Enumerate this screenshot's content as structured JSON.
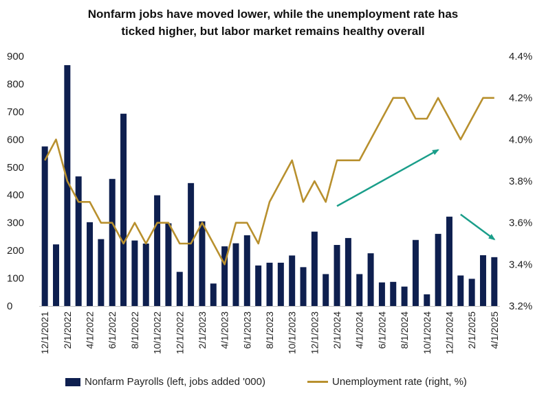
{
  "chart_data": {
    "type": "bar+line",
    "title_line1": "Nonfarm jobs have moved lower, while the unemployment rate has",
    "title_line2": "ticked higher, but labor market remains healthy overall",
    "x": [
      "12/1/2021",
      "1/1/2022",
      "2/1/2022",
      "3/1/2022",
      "4/1/2022",
      "5/1/2022",
      "6/1/2022",
      "7/1/2022",
      "8/1/2022",
      "9/1/2022",
      "10/1/2022",
      "11/1/2022",
      "12/1/2022",
      "1/1/2023",
      "2/1/2023",
      "3/1/2023",
      "4/1/2023",
      "5/1/2023",
      "6/1/2023",
      "7/1/2023",
      "8/1/2023",
      "9/1/2023",
      "10/1/2023",
      "11/1/2023",
      "12/1/2023",
      "1/1/2024",
      "2/1/2024",
      "3/1/2024",
      "4/1/2024",
      "5/1/2024",
      "6/1/2024",
      "7/1/2024",
      "8/1/2024",
      "9/1/2024",
      "10/1/2024",
      "11/1/2024",
      "12/1/2024",
      "1/1/2025",
      "2/1/2025",
      "3/1/2025",
      "4/1/2025"
    ],
    "x_tick_labels": [
      "12/1/2021",
      "2/1/2022",
      "4/1/2022",
      "6/1/2022",
      "8/1/2022",
      "10/1/2022",
      "12/1/2022",
      "2/1/2023",
      "4/1/2023",
      "6/1/2023",
      "8/1/2023",
      "10/1/2023",
      "12/1/2023",
      "2/1/2024",
      "4/1/2024",
      "6/1/2024",
      "8/1/2024",
      "10/1/2024",
      "12/1/2024",
      "2/1/2025",
      "4/1/2025"
    ],
    "series": [
      {
        "name": "Nonfarm Payrolls (left, jobs added '000)",
        "type": "bar",
        "axis": "left",
        "color": "#0e1f4f",
        "values": [
          575,
          222,
          868,
          467,
          302,
          241,
          458,
          693,
          236,
          225,
          399,
          298,
          123,
          443,
          305,
          81,
          215,
          226,
          255,
          146,
          156,
          156,
          182,
          140,
          268,
          115,
          220,
          245,
          115,
          190,
          85,
          87,
          70,
          238,
          42,
          260,
          322,
          110,
          98,
          183,
          176
        ]
      },
      {
        "name": "Unemployment rate (right, %)",
        "type": "line",
        "axis": "right",
        "color": "#b8902e",
        "values": [
          3.9,
          4.0,
          3.8,
          3.7,
          3.7,
          3.6,
          3.6,
          3.5,
          3.6,
          3.5,
          3.6,
          3.6,
          3.5,
          3.5,
          3.6,
          3.5,
          3.4,
          3.6,
          3.6,
          3.5,
          3.7,
          3.8,
          3.9,
          3.7,
          3.8,
          3.7,
          3.9,
          3.9,
          3.9,
          4.0,
          4.1,
          4.2,
          4.2,
          4.1,
          4.1,
          4.2,
          4.1,
          4.0,
          4.1,
          4.2,
          4.2
        ]
      }
    ],
    "y_left": {
      "min": 0,
      "max": 900,
      "ticks": [
        "0",
        "100",
        "200",
        "300",
        "400",
        "500",
        "600",
        "700",
        "800",
        "900"
      ]
    },
    "y_right": {
      "min": 3.2,
      "max": 4.4,
      "ticks": [
        "3.2%",
        "3.4%",
        "3.6%",
        "3.8%",
        "4.0%",
        "4.2%",
        "4.4%"
      ]
    },
    "annotations": [
      {
        "type": "arrow",
        "color": "#1a9e8a",
        "from_index": 26,
        "from_value": 3.68,
        "to_index": 35,
        "to_value": 3.95,
        "axis": "right"
      },
      {
        "type": "arrow",
        "color": "#1a9e8a",
        "from_index": 37,
        "from_value": 3.64,
        "to_index": 40,
        "to_value": 3.52,
        "axis": "right"
      }
    ],
    "legend_position": "bottom"
  }
}
